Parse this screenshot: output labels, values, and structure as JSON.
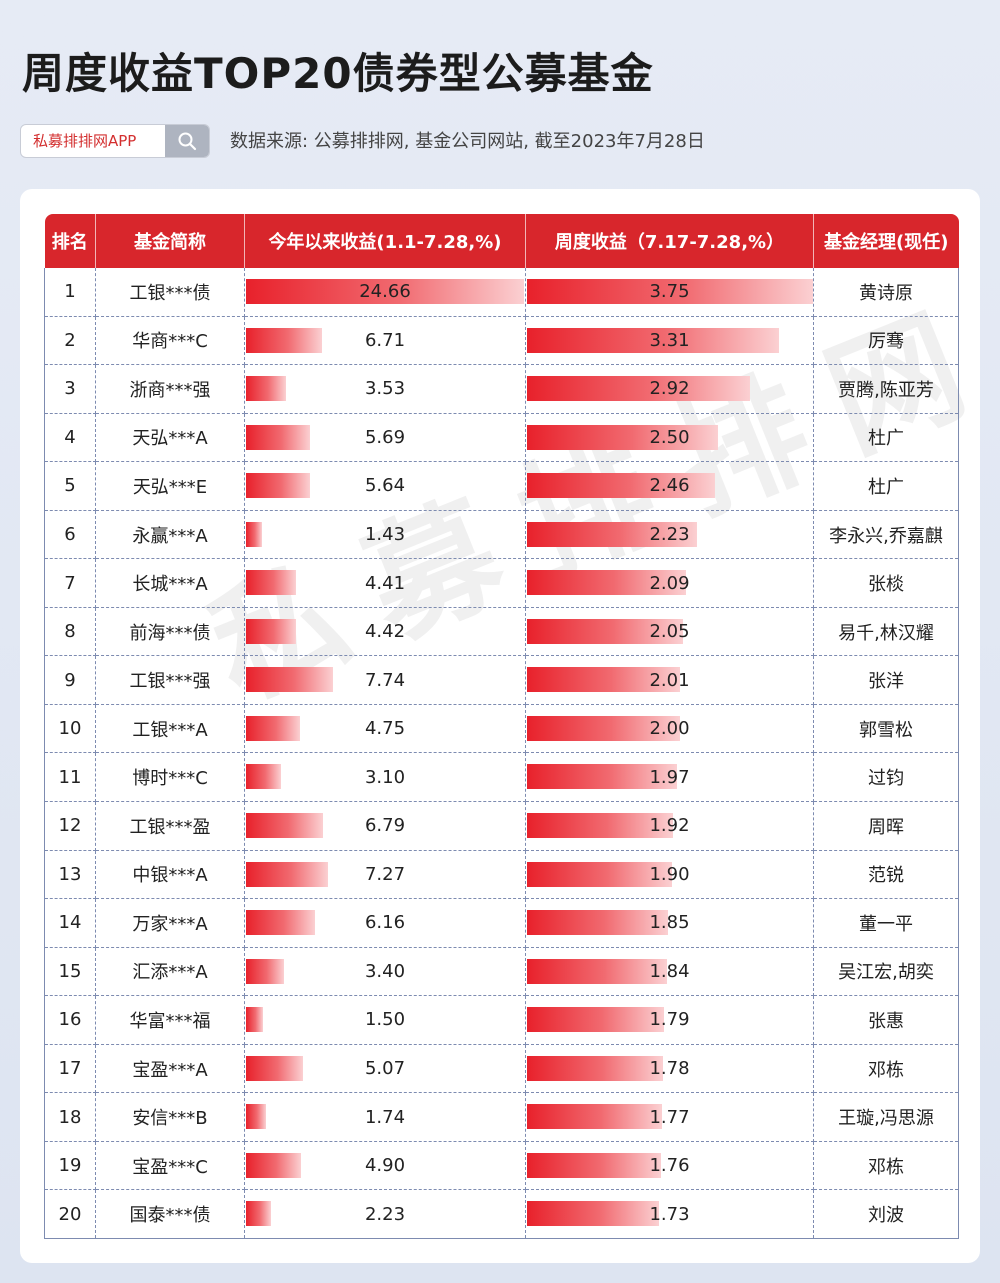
{
  "title": "周度收益TOP20债券型公募基金",
  "brand": {
    "name": "私募排排网APP",
    "search_icon": "search-icon"
  },
  "source": "数据来源: 公募排排网, 基金公司网站, 截至2023年7月28日",
  "watermark": "私募排排网",
  "colors": {
    "header": "#d8262c",
    "bar_start": "#e8212b",
    "bar_end": "#fbd0d2"
  },
  "chart_data": {
    "type": "table",
    "columns": [
      "排名",
      "基金简称",
      "今年以来收益(1.1-7.28,%)",
      "周度收益（7.17-7.28,%）",
      "基金经理(现任)"
    ],
    "ytd_max": 24.66,
    "weekly_max": 3.75,
    "rows": [
      {
        "rank": "1",
        "name": "工银***债",
        "ytd": 24.66,
        "weekly": 3.75,
        "manager": "黄诗原"
      },
      {
        "rank": "2",
        "name": "华商***C",
        "ytd": 6.71,
        "weekly": 3.31,
        "manager": "厉骞"
      },
      {
        "rank": "3",
        "name": "浙商***强",
        "ytd": 3.53,
        "weekly": 2.92,
        "manager": "贾腾,陈亚芳"
      },
      {
        "rank": "4",
        "name": "天弘***A",
        "ytd": 5.69,
        "weekly": 2.5,
        "manager": "杜广"
      },
      {
        "rank": "5",
        "name": "天弘***E",
        "ytd": 5.64,
        "weekly": 2.46,
        "manager": "杜广"
      },
      {
        "rank": "6",
        "name": "永赢***A",
        "ytd": 1.43,
        "weekly": 2.23,
        "manager": "李永兴,乔嘉麒"
      },
      {
        "rank": "7",
        "name": "长城***A",
        "ytd": 4.41,
        "weekly": 2.09,
        "manager": "张棪"
      },
      {
        "rank": "8",
        "name": "前海***债",
        "ytd": 4.42,
        "weekly": 2.05,
        "manager": "易千,林汉耀"
      },
      {
        "rank": "9",
        "name": "工银***强",
        "ytd": 7.74,
        "weekly": 2.01,
        "manager": "张洋"
      },
      {
        "rank": "10",
        "name": "工银***A",
        "ytd": 4.75,
        "weekly": 2.0,
        "manager": "郭雪松"
      },
      {
        "rank": "11",
        "name": "博时***C",
        "ytd": 3.1,
        "weekly": 1.97,
        "manager": "过钧"
      },
      {
        "rank": "12",
        "name": "工银***盈",
        "ytd": 6.79,
        "weekly": 1.92,
        "manager": "周晖"
      },
      {
        "rank": "13",
        "name": "中银***A",
        "ytd": 7.27,
        "weekly": 1.9,
        "manager": "范锐"
      },
      {
        "rank": "14",
        "name": "万家***A",
        "ytd": 6.16,
        "weekly": 1.85,
        "manager": "董一平"
      },
      {
        "rank": "15",
        "name": "汇添***A",
        "ytd": 3.4,
        "weekly": 1.84,
        "manager": "吴江宏,胡奕"
      },
      {
        "rank": "16",
        "name": "华富***福",
        "ytd": 1.5,
        "weekly": 1.79,
        "manager": "张惠"
      },
      {
        "rank": "17",
        "name": "宝盈***A",
        "ytd": 5.07,
        "weekly": 1.78,
        "manager": "邓栋"
      },
      {
        "rank": "18",
        "name": "安信***B",
        "ytd": 1.74,
        "weekly": 1.77,
        "manager": "王璇,冯思源"
      },
      {
        "rank": "19",
        "name": "宝盈***C",
        "ytd": 4.9,
        "weekly": 1.76,
        "manager": "邓栋"
      },
      {
        "rank": "20",
        "name": "国泰***债",
        "ytd": 2.23,
        "weekly": 1.73,
        "manager": "刘波"
      }
    ]
  }
}
